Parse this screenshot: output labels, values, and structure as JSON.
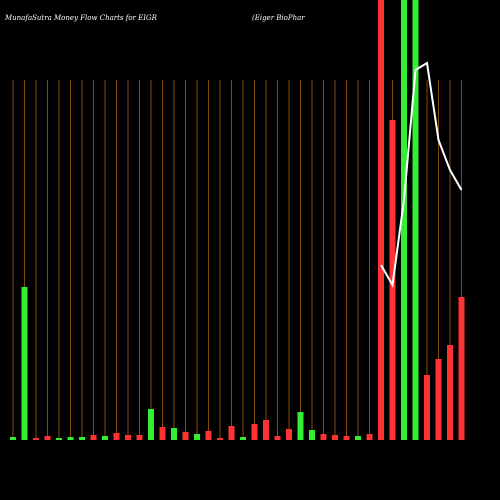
{
  "chart_data": {
    "type": "bar",
    "title": "MunafaSutra  Money Flow  Charts for EIGR",
    "subtitle": "(Eiger BioPhar",
    "categories": [
      null,
      null,
      null,
      null,
      null,
      null,
      null,
      null,
      null,
      null,
      null,
      null,
      null,
      null,
      null,
      null,
      null,
      null,
      null,
      null,
      null,
      null,
      null,
      null,
      null,
      null,
      null,
      null,
      null,
      null,
      null,
      null,
      null,
      null,
      null,
      null,
      null,
      null,
      null,
      null
    ],
    "values": [
      3,
      153,
      2,
      4,
      2,
      3,
      3,
      5,
      4,
      7,
      5,
      5,
      31,
      13,
      12,
      8,
      6,
      9,
      2,
      14,
      3,
      16,
      20,
      4,
      11,
      28,
      10,
      6,
      5,
      4,
      4,
      6,
      440,
      320,
      440,
      440,
      65,
      81,
      95,
      143
    ],
    "colors": [
      "#33ee33",
      "#33ee33",
      "#ff3333",
      "#ff3333",
      "#33ee33",
      "#33ee33",
      "#33ee33",
      "#ff3333",
      "#33ee33",
      "#ff3333",
      "#ff3333",
      "#ff3333",
      "#33ee33",
      "#ff3333",
      "#33ee33",
      "#ff3333",
      "#33ee33",
      "#ff3333",
      "#ff3333",
      "#ff3333",
      "#33ee33",
      "#ff3333",
      "#ff3333",
      "#ff3333",
      "#ff3333",
      "#33ee33",
      "#33ee33",
      "#ff3333",
      "#ff3333",
      "#ff3333",
      "#33ee33",
      "#ff3333",
      "#ff3333",
      "#ff3333",
      "#33ee33",
      "#33ee33",
      "#ff3333",
      "#ff3333",
      "#ff3333",
      "#ff3333"
    ],
    "line": {
      "color": "#ffffff",
      "values": [
        null,
        null,
        null,
        null,
        null,
        null,
        null,
        null,
        null,
        null,
        null,
        null,
        null,
        null,
        null,
        null,
        null,
        null,
        null,
        null,
        null,
        null,
        null,
        null,
        null,
        null,
        null,
        null,
        null,
        null,
        null,
        null,
        175,
        155,
        240,
        370,
        377,
        300,
        270,
        250
      ]
    },
    "ylim": [
      0,
      440
    ]
  }
}
